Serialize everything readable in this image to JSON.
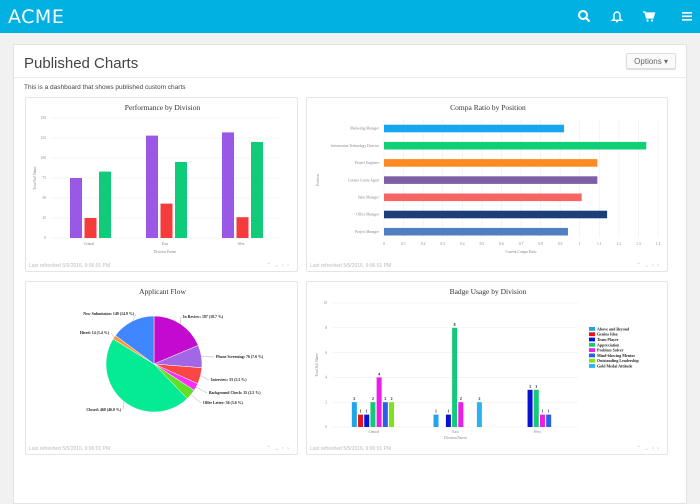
{
  "header": {
    "brand": "ACME",
    "icons": [
      "search-icon",
      "bell-icon",
      "cart-icon",
      "menu-icon"
    ],
    "color": "#00b1e1"
  },
  "page": {
    "title": "Published Charts",
    "options_label": "Options",
    "description": "This is a dashboard that shows published custom charts"
  },
  "footer_text": "Last refreshed 5/5/2016, 9:06:01 PM",
  "chart_data": [
    {
      "type": "bar",
      "title": "Performance by Division",
      "xlabel": "Division Parent",
      "ylabel": "Total Full Name",
      "categories": [
        "Central",
        "East",
        "West"
      ],
      "ylim": [
        0,
        150
      ],
      "yticks": [
        0,
        25,
        50,
        75,
        100,
        125,
        150
      ],
      "series": [
        {
          "values": [
            75,
            128,
            132
          ],
          "color": "#9b57e6"
        },
        {
          "values": [
            25,
            43,
            26
          ],
          "color": "#f53b3b"
        },
        {
          "values": [
            83,
            95,
            120
          ],
          "color": "#10cc7a"
        }
      ],
      "grid": true
    },
    {
      "type": "bar",
      "orientation": "horizontal",
      "title": "Compa Ratio by Position",
      "xlabel": "Current Compa Ratio",
      "ylabel": "Position",
      "categories": [
        "Marketing Manager",
        "Information Technology Director",
        "Project Engineer",
        "Contact Centre Agent",
        "Sales Manager",
        "Office Manager",
        "Project Manager"
      ],
      "values": [
        0.92,
        1.34,
        1.09,
        1.09,
        1.01,
        1.14,
        0.94
      ],
      "colors": [
        "#15a6ee",
        "#0fcf77",
        "#ff8a24",
        "#7d5fa6",
        "#f86464",
        "#1c3f7a",
        "#4f7fc2"
      ],
      "xlim": [
        0,
        1.4
      ],
      "xticks": [
        "0",
        "0.1",
        "0.2",
        "0.3",
        "0.4",
        "0.5",
        "0.6",
        "0.7",
        "0.8",
        "0.9",
        "1",
        "1.1",
        "1.2",
        "1.3",
        "1.4"
      ],
      "grid": true
    },
    {
      "type": "pie",
      "title": "Applicant Flow",
      "slices": [
        {
          "label": "In Review",
          "value": 187,
          "pct": "18.7 %",
          "color": "#c30bcf"
        },
        {
          "label": "Phone Screening",
          "value": 76,
          "pct": "7.6 %",
          "color": "#a167e6"
        },
        {
          "label": "Interview",
          "value": 55,
          "pct": "5.5 %",
          "color": "#fb4646"
        },
        {
          "label": "Background Check",
          "value": 25,
          "pct": "2.5 %",
          "color": "#ff2bff"
        },
        {
          "label": "Offer Letter",
          "value": 36,
          "pct": "3.6 %",
          "color": "#63de27"
        },
        {
          "label": "Closed",
          "value": 460,
          "pct": "46.0 %",
          "color": "#05eb93"
        },
        {
          "label": "Hired",
          "value": 14,
          "pct": "1.4 %",
          "color": "#ff9a3a"
        },
        {
          "label": "New Submission",
          "value": 149,
          "pct": "14.9 %",
          "color": "#3f86ff"
        }
      ]
    },
    {
      "type": "bar",
      "title": "Badge Usage by Division",
      "xlabel": "Division Parent",
      "ylabel": "Total Full Name",
      "categories": [
        "Central",
        "East",
        "West"
      ],
      "ylim": [
        0,
        10
      ],
      "yticks": [
        0,
        2,
        4,
        6,
        8,
        10
      ],
      "legend": "right",
      "grid": true,
      "series": [
        {
          "name": "Above and Beyond",
          "values": [
            2,
            1,
            null
          ],
          "color": "#1fa6e8"
        },
        {
          "name": "Genius Idea",
          "values": [
            1,
            null,
            null
          ],
          "color": "#e8141a"
        },
        {
          "name": "Team Player",
          "values": [
            1,
            1,
            3
          ],
          "color": "#0a14d0"
        },
        {
          "name": "Appreciation",
          "values": [
            2,
            8,
            3
          ],
          "color": "#14c97a"
        },
        {
          "name": "Problem Solver",
          "values": [
            4,
            2,
            1
          ],
          "color": "#ee1ce8"
        },
        {
          "name": "Mind-blowing Mentor",
          "values": [
            2,
            null,
            1
          ],
          "color": "#2a5fe8"
        },
        {
          "name": "Outstanding Leadership",
          "values": [
            2,
            null,
            null
          ],
          "color": "#7ee41a"
        },
        {
          "name": "Gold Medal Attitude",
          "values": [
            null,
            2,
            null
          ],
          "color": "#28b4f0"
        }
      ]
    }
  ]
}
